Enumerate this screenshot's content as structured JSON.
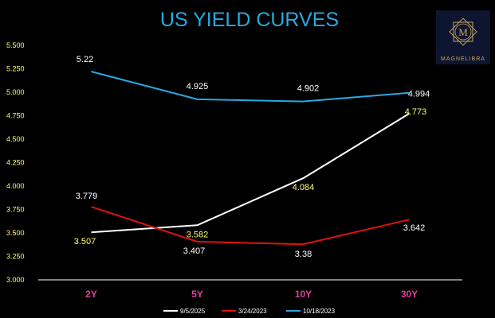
{
  "colors": {
    "background": "#000000",
    "title": "#29a9e0",
    "ytick": "#ffff66",
    "xtick": "#e0409a",
    "axis": "#ffffff",
    "logo_bg": "#0e1530",
    "logo_gold": "#c8a55a"
  },
  "logo": {
    "icon": "star-mandala-logo-icon",
    "text": "MAGNELIBRA"
  },
  "chart_data": {
    "type": "line",
    "title": "US YIELD CURVES",
    "xlabel": "",
    "ylabel": "",
    "categories": [
      "2Y",
      "5Y",
      "10Y",
      "30Y"
    ],
    "ylim": [
      3.0,
      5.5
    ],
    "yticks": [
      "3.000",
      "3.250",
      "3.500",
      "3.750",
      "4.000",
      "4.250",
      "4.500",
      "4.750",
      "5.000",
      "5.250",
      "5.500"
    ],
    "grid": false,
    "legend_position": "bottom",
    "series": [
      {
        "name": "9/5/2025",
        "color": "#ffffff",
        "values": [
          3.507,
          3.582,
          4.084,
          4.773
        ],
        "labels": [
          "3.507",
          "3.582",
          "4.084",
          "4.773"
        ],
        "label_color": "#ffff66"
      },
      {
        "name": "3/24/2023",
        "color": "#e01010",
        "values": [
          3.779,
          3.407,
          3.38,
          3.642
        ],
        "labels": [
          "3.779",
          "3.407",
          "3.38",
          "3.642"
        ],
        "label_color": "#ffffff"
      },
      {
        "name": "10/18/2023",
        "color": "#29a9e0",
        "values": [
          5.22,
          4.925,
          4.902,
          4.994
        ],
        "labels": [
          "5.22",
          "4.925",
          "4.902",
          "4.994"
        ],
        "label_color": "#ffffff"
      }
    ]
  }
}
